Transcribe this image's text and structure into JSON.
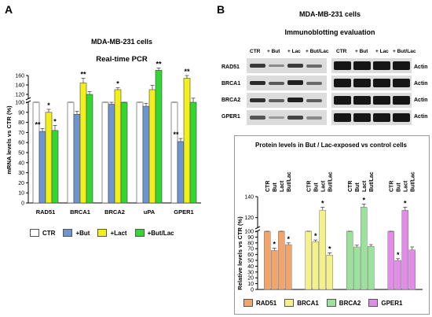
{
  "panelA": {
    "letter": "A",
    "title1": "MDA-MB-231 cells",
    "title2": "Real-time PCR",
    "ylabel": "mRNA levels vs CTR (%)",
    "legend": [
      {
        "name": "CTR",
        "color": "#ffffff"
      },
      {
        "name": "+But",
        "color": "#6f95cf"
      },
      {
        "name": "+Lact",
        "color": "#f2ef1a"
      },
      {
        "name": "+But/Lac",
        "color": "#33d633"
      }
    ]
  },
  "panelB": {
    "letter": "B",
    "title1": "MDA-MB-231 cells",
    "title2": "Immunoblotting evaluation",
    "lane_headers": [
      "CTR",
      "+ But",
      "+ Lac",
      "+ But/Lac"
    ],
    "blot_rows": [
      "RAD51",
      "BRCA1",
      "BRCA2",
      "GPER1"
    ],
    "actin_label": "Actin",
    "chart_title": "Protein levels in But / Lac-exposed vs control cells",
    "ylabel": "Relative levels vs CTR (%)",
    "lane_labels_chart": [
      "CTR",
      "But",
      "Lact",
      "But/Lac"
    ],
    "legend": [
      {
        "name": "RAD51",
        "color": "#f2a46a"
      },
      {
        "name": "BRCA1",
        "color": "#f4f08a"
      },
      {
        "name": "BRCA2",
        "color": "#9be39b"
      },
      {
        "name": "GPER1",
        "color": "#e28be8"
      }
    ]
  },
  "chart_data": [
    {
      "type": "bar",
      "title": "Real-time PCR",
      "ylabel": "mRNA levels vs CTR (%)",
      "categories": [
        "RAD51",
        "BRCA1",
        "BRCA2",
        "uPA",
        "GPER1"
      ],
      "yticks": [
        0,
        10,
        20,
        30,
        40,
        50,
        60,
        70,
        80,
        90,
        100,
        120,
        140,
        160
      ],
      "axis_break": [
        100,
        110
      ],
      "series": [
        {
          "name": "CTR",
          "color": "#ffffff",
          "values": [
            100,
            100,
            100,
            100,
            100
          ],
          "errors": [
            4,
            5,
            3,
            5,
            4
          ],
          "sig": [
            "",
            "",
            "",
            "",
            ""
          ]
        },
        {
          "name": "+But",
          "color": "#6f95cf",
          "values": [
            71,
            88,
            98,
            96,
            61
          ],
          "errors": [
            3,
            3,
            3,
            3,
            3
          ],
          "sig": [
            "**",
            "",
            "",
            "",
            "**"
          ]
        },
        {
          "name": "+Lact",
          "color": "#f2ef1a",
          "values": [
            90,
            144,
            130,
            130,
            154
          ],
          "errors": [
            3,
            10,
            4,
            9,
            6
          ],
          "sig": [
            "*",
            "**",
            "*",
            "",
            "**"
          ]
        },
        {
          "name": "+But/Lac",
          "color": "#33d633",
          "values": [
            72,
            120,
            100,
            171,
            106
          ],
          "errors": [
            5,
            6,
            3,
            5,
            6
          ],
          "sig": [
            "*",
            "",
            "",
            "**",
            ""
          ]
        }
      ]
    },
    {
      "type": "bar",
      "title": "Protein levels in But / Lac-exposed vs control cells",
      "ylabel": "Relative levels vs CTR (%)",
      "yticks": [
        0,
        10,
        20,
        30,
        40,
        50,
        60,
        70,
        80,
        90,
        100,
        120,
        140
      ],
      "axis_break": [
        100,
        110
      ],
      "groups": [
        {
          "name": "RAD51",
          "color": "#f2a46a",
          "categories": [
            "CTR",
            "But",
            "Lact",
            "But/Lac"
          ],
          "values": [
            100,
            67,
            103,
            77
          ],
          "errors": [
            3,
            4,
            2,
            3
          ],
          "sig": [
            "",
            "*",
            "",
            "*"
          ]
        },
        {
          "name": "BRCA1",
          "color": "#f4f08a",
          "categories": [
            "CTR",
            "But",
            "Lact",
            "But/Lac"
          ],
          "values": [
            100,
            82,
            127,
            59
          ],
          "errors": [
            3,
            3,
            3,
            4
          ],
          "sig": [
            "",
            "*",
            "*",
            "*"
          ]
        },
        {
          "name": "BRCA2",
          "color": "#9be39b",
          "categories": [
            "CTR",
            "But",
            "Lact",
            "But/Lac"
          ],
          "values": [
            100,
            73,
            130,
            74
          ],
          "errors": [
            3,
            3,
            3,
            3
          ],
          "sig": [
            "",
            "",
            "*",
            ""
          ]
        },
        {
          "name": "GPER1",
          "color": "#e28be8",
          "categories": [
            "CTR",
            "But",
            "Lact",
            "But/Lac"
          ],
          "values": [
            100,
            50,
            127,
            68
          ],
          "errors": [
            4,
            3,
            3,
            5
          ],
          "sig": [
            "",
            "*",
            "*",
            ""
          ]
        }
      ]
    }
  ]
}
